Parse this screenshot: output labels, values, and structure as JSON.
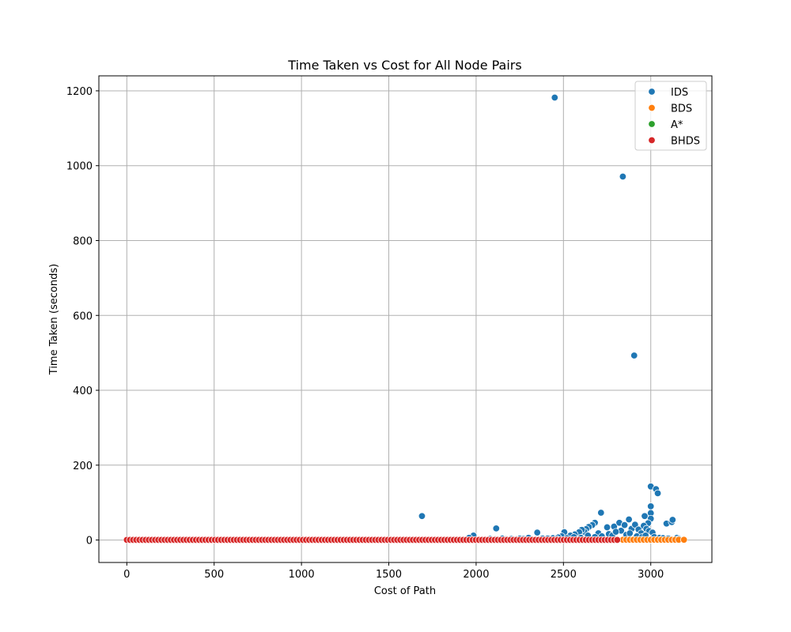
{
  "chart_data": {
    "type": "scatter",
    "title": "Time Taken vs Cost for All Node Pairs",
    "xlabel": "Cost of Path",
    "ylabel": "Time Taken (seconds)",
    "xlim": [
      -160,
      3350
    ],
    "ylim": [
      -60,
      1240
    ],
    "x_ticks": [
      0,
      500,
      1000,
      1500,
      2000,
      2500,
      3000
    ],
    "y_ticks": [
      0,
      200,
      400,
      600,
      800,
      1000,
      1200
    ],
    "grid": true,
    "legend_position": "top-right",
    "series": [
      {
        "name": "IDS",
        "color": "#1f77b4",
        "points": [
          [
            2450,
            1182
          ],
          [
            2840,
            971
          ],
          [
            2905,
            493
          ],
          [
            1690,
            64
          ],
          [
            2115,
            31
          ],
          [
            3000,
            143
          ],
          [
            3030,
            136
          ],
          [
            3040,
            125
          ],
          [
            3000,
            90
          ],
          [
            3000,
            72
          ],
          [
            3000,
            57
          ],
          [
            2965,
            64
          ],
          [
            2985,
            45
          ],
          [
            3090,
            44
          ],
          [
            3120,
            48
          ],
          [
            3125,
            54
          ],
          [
            2715,
            73
          ],
          [
            2680,
            46
          ],
          [
            2665,
            40
          ],
          [
            2645,
            35
          ],
          [
            2630,
            29
          ],
          [
            2620,
            22
          ],
          [
            2605,
            27
          ],
          [
            2590,
            21
          ],
          [
            2565,
            15
          ],
          [
            2540,
            12
          ],
          [
            2505,
            21
          ],
          [
            2490,
            10
          ],
          [
            2470,
            7
          ],
          [
            2440,
            5
          ],
          [
            2410,
            4
          ],
          [
            2350,
            20
          ],
          [
            2300,
            6
          ],
          [
            2250,
            4
          ],
          [
            2200,
            3
          ],
          [
            2150,
            4
          ],
          [
            2080,
            3
          ],
          [
            1985,
            12
          ],
          [
            1960,
            6
          ],
          [
            2750,
            34
          ],
          [
            2790,
            36
          ],
          [
            2820,
            46
          ],
          [
            2830,
            25
          ],
          [
            2850,
            40
          ],
          [
            2875,
            55
          ],
          [
            2890,
            30
          ],
          [
            2910,
            41
          ],
          [
            2930,
            28
          ],
          [
            2945,
            18
          ],
          [
            2960,
            38
          ],
          [
            2975,
            30
          ],
          [
            2990,
            24
          ],
          [
            3010,
            20
          ],
          [
            2760,
            16
          ],
          [
            2780,
            12
          ],
          [
            2700,
            18
          ],
          [
            2720,
            10
          ],
          [
            2800,
            22
          ],
          [
            2860,
            14
          ],
          [
            2880,
            18
          ],
          [
            2920,
            10
          ],
          [
            2950,
            8
          ],
          [
            2970,
            12
          ],
          [
            3020,
            8
          ],
          [
            3050,
            6
          ],
          [
            3070,
            5
          ],
          [
            3100,
            4
          ],
          [
            3150,
            6
          ],
          [
            3160,
            3
          ],
          [
            2680,
            8
          ],
          [
            2640,
            12
          ],
          [
            2600,
            6
          ],
          [
            2560,
            8
          ],
          [
            2520,
            5
          ],
          [
            2460,
            3
          ],
          [
            2380,
            4
          ],
          [
            2270,
            3
          ],
          [
            2230,
            2
          ],
          [
            2170,
            2
          ],
          [
            2110,
            2
          ]
        ]
      },
      {
        "name": "BDS",
        "color": "#ff7f0e",
        "points": [
          [
            2840,
            0.6
          ],
          [
            2860,
            0.6
          ],
          [
            2880,
            0.6
          ],
          [
            2900,
            0.6
          ],
          [
            2920,
            0.6
          ],
          [
            2940,
            0.6
          ],
          [
            2960,
            0.6
          ],
          [
            2980,
            0.6
          ],
          [
            3000,
            0.6
          ],
          [
            3020,
            0.6
          ],
          [
            3040,
            0.6
          ],
          [
            3060,
            0.6
          ],
          [
            3080,
            0.6
          ],
          [
            3100,
            0.6
          ],
          [
            3120,
            0.6
          ],
          [
            3140,
            0.6
          ],
          [
            3160,
            0.6
          ],
          [
            3190,
            0.6
          ]
        ]
      },
      {
        "name": "A*",
        "color": "#2ca02c",
        "points": []
      },
      {
        "name": "BHDS",
        "color": "#d62728",
        "points": []
      }
    ],
    "bhds_band": {
      "x_start": 0,
      "x_end": 2810,
      "step": 18,
      "y": 0.3
    }
  }
}
